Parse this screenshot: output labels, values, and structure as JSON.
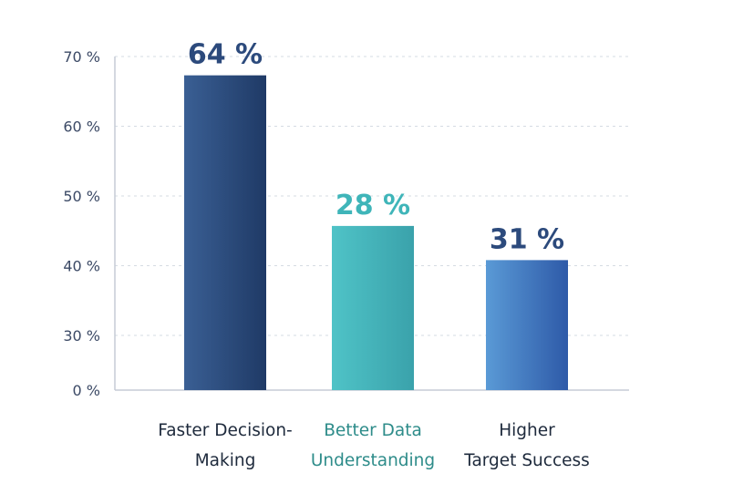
{
  "chart_data": {
    "type": "bar",
    "title": "",
    "xlabel": "",
    "ylabel": "",
    "categories": [
      [
        "Faster Decision-",
        "Making"
      ],
      [
        "Better Data",
        "Understanding"
      ],
      [
        "Higher",
        "Target Success"
      ]
    ],
    "values": [
      64,
      28,
      31
    ],
    "data_labels": [
      "64 %",
      "28 %",
      "31 %"
    ],
    "y_ticks": [
      {
        "value": 0,
        "label": "0 %"
      },
      {
        "value": 30,
        "label": "30 %"
      },
      {
        "value": 40,
        "label": "40 %"
      },
      {
        "value": 50,
        "label": "50 %"
      },
      {
        "value": 60,
        "label": "60 %"
      },
      {
        "value": 70,
        "label": "70 %"
      }
    ],
    "grid": true,
    "legend": "none",
    "colors": {
      "bars": [
        [
          "#3a5f94",
          "#1f3a66"
        ],
        [
          "#4fc3c7",
          "#3aa2ab"
        ],
        [
          "#5a9ad6",
          "#2e5aa8"
        ]
      ],
      "data_labels": [
        "#2c4a7c",
        "#3fb5b9",
        "#2c4a7c"
      ],
      "category_labels": [
        "#1e2a3c",
        "#2e8c8a",
        "#1e2a3c"
      ],
      "axis": "#c5ccd6",
      "grid": "#d5dbe3"
    }
  }
}
